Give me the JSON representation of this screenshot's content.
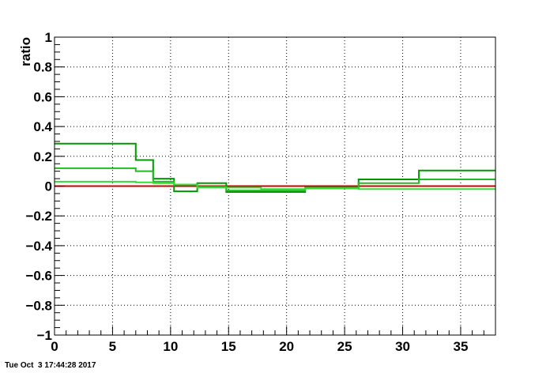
{
  "timestamp": "Tue Oct  3 17:44:28 2017",
  "chart_data": {
    "type": "line",
    "title": "",
    "xlabel": "",
    "ylabel": "ratio",
    "xlim": [
      0,
      38
    ],
    "ylim": [
      -1,
      1
    ],
    "grid": true,
    "x_ticks": [
      0,
      5,
      10,
      15,
      20,
      25,
      30,
      35
    ],
    "y_ticks": [
      -1,
      -0.8,
      -0.6,
      -0.4,
      -0.2,
      0,
      0.2,
      0.4,
      0.6,
      0.8,
      1
    ],
    "x_tick_labels": [
      "0",
      "5",
      "10",
      "15",
      "20",
      "25",
      "30",
      "35"
    ],
    "y_tick_labels": [
      "−1",
      "−0.8",
      "−0.6",
      "−0.4",
      "−0.2",
      "0",
      "0.2",
      "0.4",
      "0.6",
      "0.8",
      "1"
    ],
    "bin_edges": [
      0,
      7,
      8.5,
      10.3,
      12.3,
      14.8,
      17.8,
      21.6,
      26.2,
      31.4,
      38
    ],
    "series": [
      {
        "color": "#cc0000",
        "values": [
          0,
          0,
          0,
          0,
          0,
          0,
          0,
          0,
          0,
          0
        ]
      },
      {
        "color": "#009900",
        "values": [
          0.285,
          0.175,
          0.05,
          -0.035,
          0.02,
          -0.04,
          -0.04,
          -0.015,
          0.045,
          0.105
        ]
      },
      {
        "color": "#22bb22",
        "values": [
          0.12,
          0.1,
          0.03,
          0.01,
          -0.005,
          -0.03,
          -0.03,
          -0.01,
          0.02,
          0.045
        ]
      },
      {
        "color": "#33dd33",
        "values": [
          0.03,
          0.025,
          0.02,
          0.01,
          -0.01,
          -0.01,
          -0.02,
          -0.015,
          -0.02,
          -0.02
        ]
      }
    ]
  }
}
